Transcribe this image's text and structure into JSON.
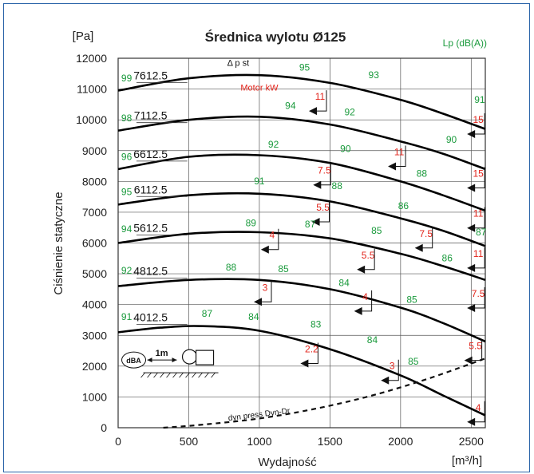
{
  "chart_data": {
    "type": "line",
    "title": "Średnica wylotu Ø125",
    "xlabel": "Wydajność",
    "ylabel": "Ciśnienie statyczne",
    "x_unit": "[m³/h]",
    "y_unit": "[Pa]",
    "lp_label": "Lp (dB(A))",
    "pressure_label": "Δ p st",
    "motor_label": "Motor  kW",
    "dyn_label": "dyn press  Dyn-Dr",
    "xlim": [
      0,
      2600
    ],
    "ylim": [
      0,
      12000
    ],
    "x_ticks": [
      0,
      500,
      1000,
      1500,
      2000,
      2500
    ],
    "y_ticks": [
      0,
      1000,
      2000,
      3000,
      4000,
      5000,
      6000,
      7000,
      8000,
      9000,
      10000,
      11000,
      12000
    ],
    "grid": true,
    "colors": {
      "frame": "#2a63a8",
      "curve": "#000000",
      "lp": "#1a9a3c",
      "motor": "#e2231a"
    },
    "inset": {
      "dba_label": "dBA",
      "distance_label": "1m"
    },
    "series": [
      {
        "name": "7612.5",
        "x": [
          0,
          500,
          1000,
          1500,
          2000,
          2300,
          2600
        ],
        "y": [
          10950,
          11350,
          11450,
          11200,
          10650,
          10200,
          9700
        ],
        "lp": [
          {
            "x": 60,
            "y": 11250,
            "v": "99"
          },
          {
            "x": 1320,
            "y": 11600,
            "v": "95"
          },
          {
            "x": 1810,
            "y": 11350,
            "v": "93"
          },
          {
            "x": 2560,
            "y": 10550,
            "v": "91"
          }
        ],
        "motor": [
          {
            "x": 1430,
            "y": 10650,
            "v": "11"
          },
          {
            "x": 2550,
            "y": 9900,
            "v": "15"
          }
        ]
      },
      {
        "name": "7112.5",
        "x": [
          0,
          500,
          1000,
          1500,
          2000,
          2300,
          2600
        ],
        "y": [
          9650,
          10000,
          10100,
          9850,
          9300,
          8900,
          8400
        ],
        "lp": [
          {
            "x": 60,
            "y": 9950,
            "v": "98"
          },
          {
            "x": 1220,
            "y": 10350,
            "v": "94"
          },
          {
            "x": 1640,
            "y": 10150,
            "v": "92"
          },
          {
            "x": 2360,
            "y": 9250,
            "v": "90"
          }
        ],
        "motor": [
          {
            "x": 1990,
            "y": 8850,
            "v": "11"
          }
        ]
      },
      {
        "name": "6612.5",
        "x": [
          0,
          500,
          1000,
          1500,
          2000,
          2300,
          2600
        ],
        "y": [
          8400,
          8800,
          8850,
          8600,
          8000,
          7550,
          7050
        ],
        "lp": [
          {
            "x": 60,
            "y": 8700,
            "v": "96"
          },
          {
            "x": 1100,
            "y": 9100,
            "v": "92"
          },
          {
            "x": 1610,
            "y": 8950,
            "v": "90"
          },
          {
            "x": 2150,
            "y": 8150,
            "v": "88"
          }
        ],
        "motor": [
          {
            "x": 1460,
            "y": 8250,
            "v": "7.5"
          },
          {
            "x": 2550,
            "y": 8150,
            "v": "15"
          }
        ]
      },
      {
        "name": "6112.5",
        "x": [
          0,
          500,
          1000,
          1500,
          2000,
          2300,
          2600
        ],
        "y": [
          7250,
          7550,
          7600,
          7350,
          6800,
          6400,
          5900
        ],
        "lp": [
          {
            "x": 60,
            "y": 7550,
            "v": "95"
          },
          {
            "x": 1000,
            "y": 7900,
            "v": "91"
          },
          {
            "x": 1550,
            "y": 7750,
            "v": "88"
          },
          {
            "x": 2020,
            "y": 7100,
            "v": "86"
          }
        ],
        "motor": [
          {
            "x": 1450,
            "y": 7050,
            "v": "5.5"
          },
          {
            "x": 2550,
            "y": 6850,
            "v": "11"
          }
        ]
      },
      {
        "name": "5612.5",
        "x": [
          0,
          500,
          1000,
          1500,
          2000,
          2300,
          2600
        ],
        "y": [
          6000,
          6300,
          6350,
          6150,
          5650,
          5250,
          4800
        ],
        "lp": [
          {
            "x": 60,
            "y": 6350,
            "v": "94"
          },
          {
            "x": 940,
            "y": 6550,
            "v": "89"
          },
          {
            "x": 1360,
            "y": 6500,
            "v": "87"
          },
          {
            "x": 1830,
            "y": 6300,
            "v": "85"
          },
          {
            "x": 2330,
            "y": 5400,
            "v": "86"
          },
          {
            "x": 2570,
            "y": 6250,
            "v": "87"
          }
        ],
        "motor": [
          {
            "x": 1090,
            "y": 6150,
            "v": "4"
          },
          {
            "x": 1770,
            "y": 5500,
            "v": "5.5"
          },
          {
            "x": 2180,
            "y": 6200,
            "v": "7.5"
          },
          {
            "x": 2550,
            "y": 5550,
            "v": "11"
          }
        ]
      },
      {
        "name": "4812.5",
        "x": [
          0,
          500,
          1000,
          1500,
          2000,
          2300,
          2600
        ],
        "y": [
          4600,
          4800,
          4800,
          4500,
          3900,
          3400,
          2800
        ],
        "lp": [
          {
            "x": 60,
            "y": 5000,
            "v": "92"
          },
          {
            "x": 800,
            "y": 5100,
            "v": "88"
          },
          {
            "x": 1170,
            "y": 5050,
            "v": "85"
          },
          {
            "x": 1600,
            "y": 4600,
            "v": "84"
          },
          {
            "x": 2080,
            "y": 4050,
            "v": "85"
          }
        ],
        "motor": [
          {
            "x": 1040,
            "y": 4450,
            "v": "3"
          },
          {
            "x": 1750,
            "y": 4150,
            "v": "4"
          },
          {
            "x": 2550,
            "y": 4250,
            "v": "7.5"
          }
        ]
      },
      {
        "name": "4012.5",
        "x": [
          0,
          300,
          600,
          1000,
          1500,
          2000,
          2300,
          2600
        ],
        "y": [
          3100,
          3250,
          3300,
          3150,
          2550,
          1700,
          1050,
          400
        ],
        "lp": [
          {
            "x": 60,
            "y": 3500,
            "v": "91"
          },
          {
            "x": 630,
            "y": 3600,
            "v": "87"
          },
          {
            "x": 960,
            "y": 3500,
            "v": "84"
          },
          {
            "x": 1400,
            "y": 3250,
            "v": "83"
          },
          {
            "x": 1800,
            "y": 2750,
            "v": "84"
          },
          {
            "x": 2090,
            "y": 2050,
            "v": "85"
          }
        ],
        "motor": [
          {
            "x": 1370,
            "y": 2450,
            "v": "2.2"
          },
          {
            "x": 1940,
            "y": 1900,
            "v": "3"
          },
          {
            "x": 2530,
            "y": 2550,
            "v": "5.5"
          },
          {
            "x": 2550,
            "y": 550,
            "v": "4"
          }
        ]
      }
    ],
    "dyn_pressure": {
      "x": [
        320,
        600,
        1000,
        1400,
        1800,
        2200,
        2600
      ],
      "y": [
        0,
        100,
        300,
        620,
        1050,
        1600,
        2250
      ]
    }
  }
}
